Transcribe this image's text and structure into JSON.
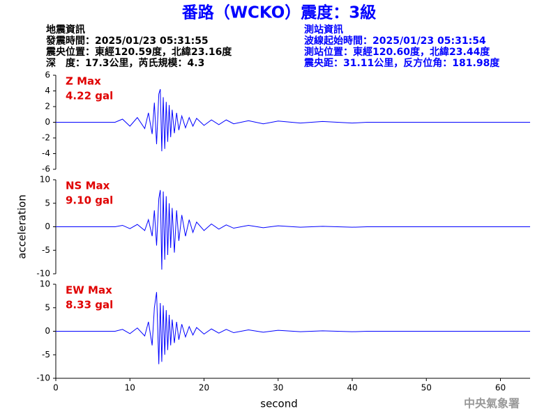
{
  "header": {
    "title": "番路（WCKO）震度：3級",
    "left": [
      "地震資訊",
      "發震時間：2025/01/23 05:31:55",
      "震央位置：東經120.59度，北緯23.16度",
      "深　度：17.3公里，芮氏規模：4.3"
    ],
    "right": [
      "測站資訊",
      "波線起始時間：2025/01/23 05:31:54",
      "測站位置：東經120.60度，北緯23.44度",
      "震央距：31.11公里，反方位角：181.98度"
    ],
    "footer": "中央氣象署"
  },
  "chart_data": [
    {
      "type": "line",
      "annotation": [
        "Z Max",
        "4.22 gal"
      ],
      "annotation_color": "#e00000",
      "color": "#0000ff",
      "x": [
        0,
        8,
        9,
        10,
        11,
        12,
        12.5,
        13,
        13.3,
        13.6,
        13.9,
        14.1,
        14.3,
        14.5,
        14.7,
        14.9,
        15.1,
        15.3,
        15.5,
        15.7,
        16,
        16.3,
        16.6,
        17,
        17.5,
        18,
        18.5,
        19,
        20,
        21,
        22,
        23,
        24,
        26,
        28,
        30,
        33,
        36,
        40,
        42,
        64
      ],
      "values": [
        0,
        0,
        0.4,
        -0.5,
        0.6,
        -0.8,
        1.2,
        -1.5,
        2.5,
        -2.8,
        3.6,
        4.22,
        -3.7,
        3.2,
        -3.4,
        2.6,
        -2.5,
        2.2,
        -1.9,
        1.6,
        -1.4,
        1.2,
        -1.0,
        0.8,
        -0.7,
        0.6,
        -0.5,
        0.5,
        -0.4,
        0.3,
        -0.3,
        0.3,
        -0.2,
        0.2,
        -0.2,
        0.15,
        -0.1,
        0.1,
        -0.1,
        0,
        0
      ],
      "xlim": [
        0,
        64
      ],
      "ylim": [
        -6,
        6
      ],
      "yticks": [
        6,
        4,
        2,
        0,
        -2,
        -4,
        -6
      ]
    },
    {
      "type": "line",
      "annotation": [
        "NS Max",
        "9.10 gal"
      ],
      "annotation_color": "#e00000",
      "color": "#0000ff",
      "ylabel": "acceleration",
      "x": [
        0,
        8,
        9,
        10,
        11,
        12,
        12.5,
        13,
        13.3,
        13.6,
        13.9,
        14.1,
        14.3,
        14.5,
        14.7,
        14.9,
        15.1,
        15.3,
        15.5,
        15.7,
        16,
        16.3,
        16.6,
        17,
        17.5,
        18,
        18.5,
        19,
        20,
        21,
        22,
        23,
        24,
        26,
        28,
        30,
        33,
        36,
        40,
        42,
        64
      ],
      "values": [
        0,
        0,
        0.3,
        -0.4,
        0.5,
        -0.8,
        1.5,
        -2,
        3.5,
        -4,
        6,
        7.8,
        -9.1,
        7.5,
        -7,
        6.5,
        -6,
        5,
        -4.5,
        4,
        -5.5,
        3.5,
        -3,
        2.5,
        -2,
        1.5,
        -1.2,
        1,
        -0.8,
        0.6,
        -0.5,
        0.4,
        -0.3,
        0.3,
        -0.2,
        0.2,
        -0.1,
        0.1,
        -0.1,
        0,
        0
      ],
      "xlim": [
        0,
        64
      ],
      "ylim": [
        -10,
        10
      ],
      "yticks": [
        10,
        5,
        0,
        -5,
        -10
      ]
    },
    {
      "type": "line",
      "annotation": [
        "EW Max",
        "8.33 gal"
      ],
      "annotation_color": "#e00000",
      "color": "#0000ff",
      "xlabel": "second",
      "x": [
        0,
        8,
        9,
        10,
        11,
        12,
        12.5,
        13,
        13.3,
        13.6,
        13.9,
        14.1,
        14.3,
        14.5,
        14.7,
        14.9,
        15.1,
        15.3,
        15.5,
        15.7,
        16,
        16.3,
        16.6,
        17,
        17.5,
        18,
        18.5,
        19,
        20,
        21,
        22,
        23,
        24,
        26,
        28,
        30,
        33,
        36,
        40,
        42,
        64
      ],
      "values": [
        0,
        0,
        0.4,
        -0.5,
        0.7,
        -1,
        2,
        -3,
        5,
        8.33,
        -7,
        6,
        -6.5,
        5.5,
        -5,
        4.5,
        -4,
        3.5,
        -3,
        2.5,
        -2.5,
        2,
        -1.8,
        1.5,
        -1.2,
        1,
        -0.8,
        0.8,
        -0.6,
        0.5,
        -0.4,
        0.4,
        -0.3,
        0.3,
        -0.2,
        0.2,
        -0.1,
        0.1,
        -0.1,
        0,
        0
      ],
      "xlim": [
        0,
        64
      ],
      "ylim": [
        -10,
        10
      ],
      "yticks": [
        10,
        5,
        0,
        -5,
        -10
      ],
      "xticks": [
        0,
        10,
        20,
        30,
        40,
        50,
        60
      ]
    }
  ]
}
